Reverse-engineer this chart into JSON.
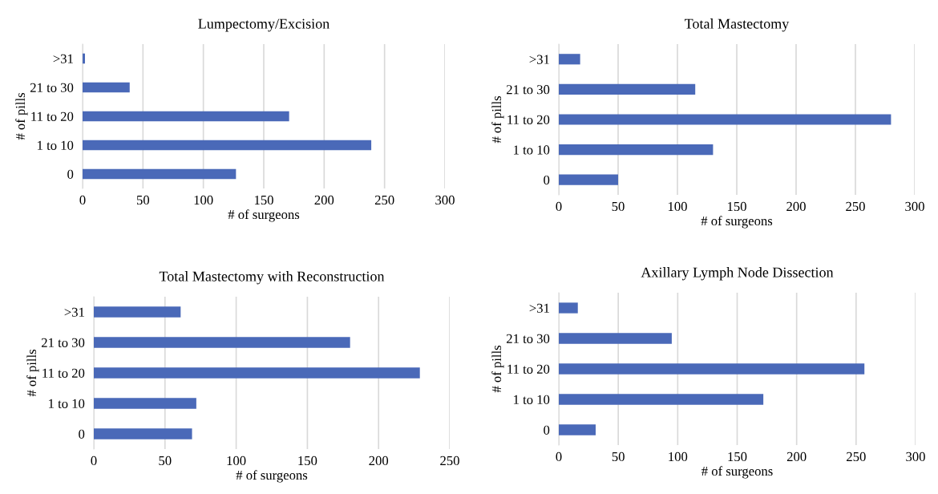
{
  "chart_data": [
    {
      "type": "bar",
      "orientation": "horizontal",
      "title": "Lumpectomy/Excision",
      "xlabel": "# of surgeons",
      "ylabel": "# of pills",
      "categories": [
        ">31",
        "21 to 30",
        "11 to 20",
        "1 to 10",
        "0"
      ],
      "values": [
        2,
        39,
        171,
        239,
        127
      ],
      "color": "#4a69b8",
      "xlim": [
        0,
        300
      ],
      "xticks": [
        0,
        50,
        100,
        150,
        200,
        250,
        300
      ],
      "grid": "x"
    },
    {
      "type": "bar",
      "orientation": "horizontal",
      "title": "Total Mastectomy",
      "xlabel": "# of surgeons",
      "ylabel": "# of pills",
      "categories": [
        ">31",
        "21 to 30",
        "11 to 20",
        "1 to 10",
        "0"
      ],
      "values": [
        18,
        115,
        280,
        130,
        50
      ],
      "color": "#4a69b8",
      "xlim": [
        0,
        300
      ],
      "xticks": [
        0,
        50,
        100,
        150,
        200,
        250,
        300
      ],
      "grid": "x"
    },
    {
      "type": "bar",
      "orientation": "horizontal",
      "title": "Total Mastectomy with Reconstruction",
      "xlabel": "# of surgeons",
      "ylabel": "# of pills",
      "categories": [
        ">31",
        "21 to 30",
        "11 to 20",
        "1 to 10",
        "0"
      ],
      "values": [
        61,
        180,
        229,
        72,
        69
      ],
      "color": "#4a69b8",
      "xlim": [
        0,
        250
      ],
      "xticks": [
        0,
        50,
        100,
        150,
        200,
        250
      ],
      "grid": "x"
    },
    {
      "type": "bar",
      "orientation": "horizontal",
      "title": "Axillary Lymph Node Dissection",
      "xlabel": "# of surgeons",
      "ylabel": "# of pills",
      "categories": [
        ">31",
        "21 to 30",
        "11 to 20",
        "1 to 10",
        "0"
      ],
      "values": [
        16,
        95,
        257,
        172,
        31
      ],
      "color": "#4a69b8",
      "xlim": [
        0,
        300
      ],
      "xticks": [
        0,
        50,
        100,
        150,
        200,
        250,
        300
      ],
      "grid": "x"
    }
  ]
}
